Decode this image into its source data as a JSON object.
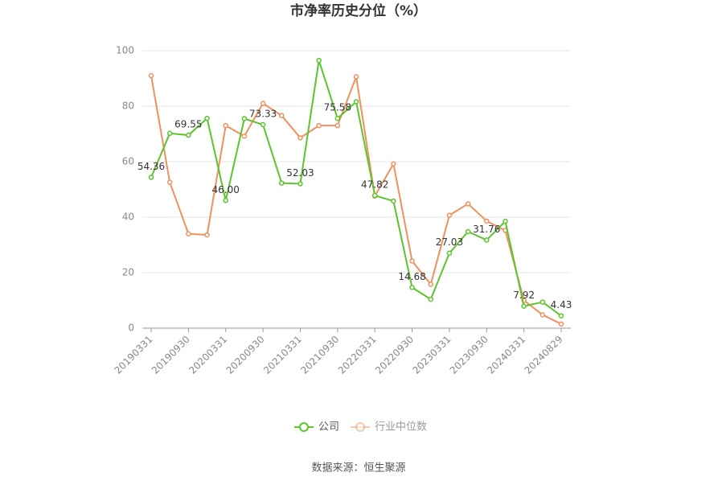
{
  "chart_data": {
    "type": "line",
    "title": "市净率历史分位（%）",
    "categories": [
      "20190331",
      null,
      "20190930",
      null,
      "20200331",
      null,
      "20200930",
      null,
      "20210331",
      null,
      "20210930",
      null,
      "20220331",
      null,
      "20220930",
      null,
      "20230331",
      null,
      "20230930",
      null,
      "20240331",
      null,
      "20240829"
    ],
    "series": [
      {
        "name": "公司",
        "color": "#5cc42c",
        "values": [
          54.36,
          70.2,
          69.55,
          75.6,
          46.0,
          75.5,
          73.33,
          52.3,
          52.03,
          96.5,
          75.58,
          81.6,
          47.82,
          45.8,
          14.68,
          10.4,
          27.03,
          34.8,
          31.76,
          38.5,
          7.92,
          9.4,
          4.43
        ],
        "value_labels": [
          "54.36",
          null,
          "69.55",
          null,
          "46.00",
          null,
          "73.33",
          null,
          "52.03",
          null,
          "75.58",
          null,
          "47.82",
          null,
          "14.68",
          null,
          "27.03",
          null,
          "31.76",
          null,
          "7.92",
          null,
          "4.43"
        ]
      },
      {
        "name": "行业中位数",
        "color": "#f0905f",
        "values": [
          91.0,
          52.6,
          34.0,
          33.6,
          73.0,
          69.2,
          81.0,
          76.6,
          68.6,
          73.0,
          73.0,
          90.6,
          47.6,
          59.2,
          24.2,
          15.8,
          40.7,
          44.8,
          38.6,
          35.2,
          10.0,
          4.8,
          1.5
        ]
      }
    ],
    "ylim": [
      0,
      100
    ],
    "yticks": [
      0,
      20,
      40,
      60,
      80,
      100
    ],
    "grid": true,
    "source": "数据来源：恒生聚源"
  }
}
